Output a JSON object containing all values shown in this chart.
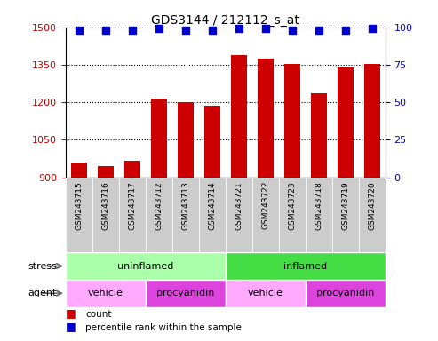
{
  "title": "GDS3144 / 212112_s_at",
  "samples": [
    "GSM243715",
    "GSM243716",
    "GSM243717",
    "GSM243712",
    "GSM243713",
    "GSM243714",
    "GSM243721",
    "GSM243722",
    "GSM243723",
    "GSM243718",
    "GSM243719",
    "GSM243720"
  ],
  "bar_values": [
    960,
    945,
    965,
    1215,
    1200,
    1185,
    1390,
    1375,
    1355,
    1235,
    1340,
    1355
  ],
  "percentile_values": [
    98,
    98,
    98,
    99,
    98,
    98,
    99,
    99,
    98,
    98,
    98,
    99
  ],
  "bar_color": "#cc0000",
  "dot_color": "#0000cc",
  "ylim_left": [
    900,
    1500
  ],
  "ylim_right": [
    0,
    100
  ],
  "yticks_left": [
    900,
    1050,
    1200,
    1350,
    1500
  ],
  "yticks_right": [
    0,
    25,
    50,
    75,
    100
  ],
  "stress_row": [
    {
      "label": "uninflamed",
      "start": 0,
      "end": 6,
      "color": "#aaffaa"
    },
    {
      "label": "inflamed",
      "start": 6,
      "end": 12,
      "color": "#44dd44"
    }
  ],
  "agent_row": [
    {
      "label": "vehicle",
      "start": 0,
      "end": 3,
      "color": "#ffaaff"
    },
    {
      "label": "procyanidin",
      "start": 3,
      "end": 6,
      "color": "#dd44dd"
    },
    {
      "label": "vehicle",
      "start": 6,
      "end": 9,
      "color": "#ffaaff"
    },
    {
      "label": "procyanidin",
      "start": 9,
      "end": 12,
      "color": "#dd44dd"
    }
  ],
  "legend_count_color": "#cc0000",
  "legend_pct_color": "#0000cc",
  "tick_label_color_left": "#cc0000",
  "tick_label_color_right": "#0000cc",
  "row_label_stress": "stress",
  "row_label_agent": "agent",
  "bar_width": 0.6,
  "dot_size": 40,
  "dot_marker": "s",
  "xticklabel_bg": "#cccccc",
  "xticklabel_fontsize": 6.5,
  "ytick_fontsize": 8,
  "title_fontsize": 10
}
